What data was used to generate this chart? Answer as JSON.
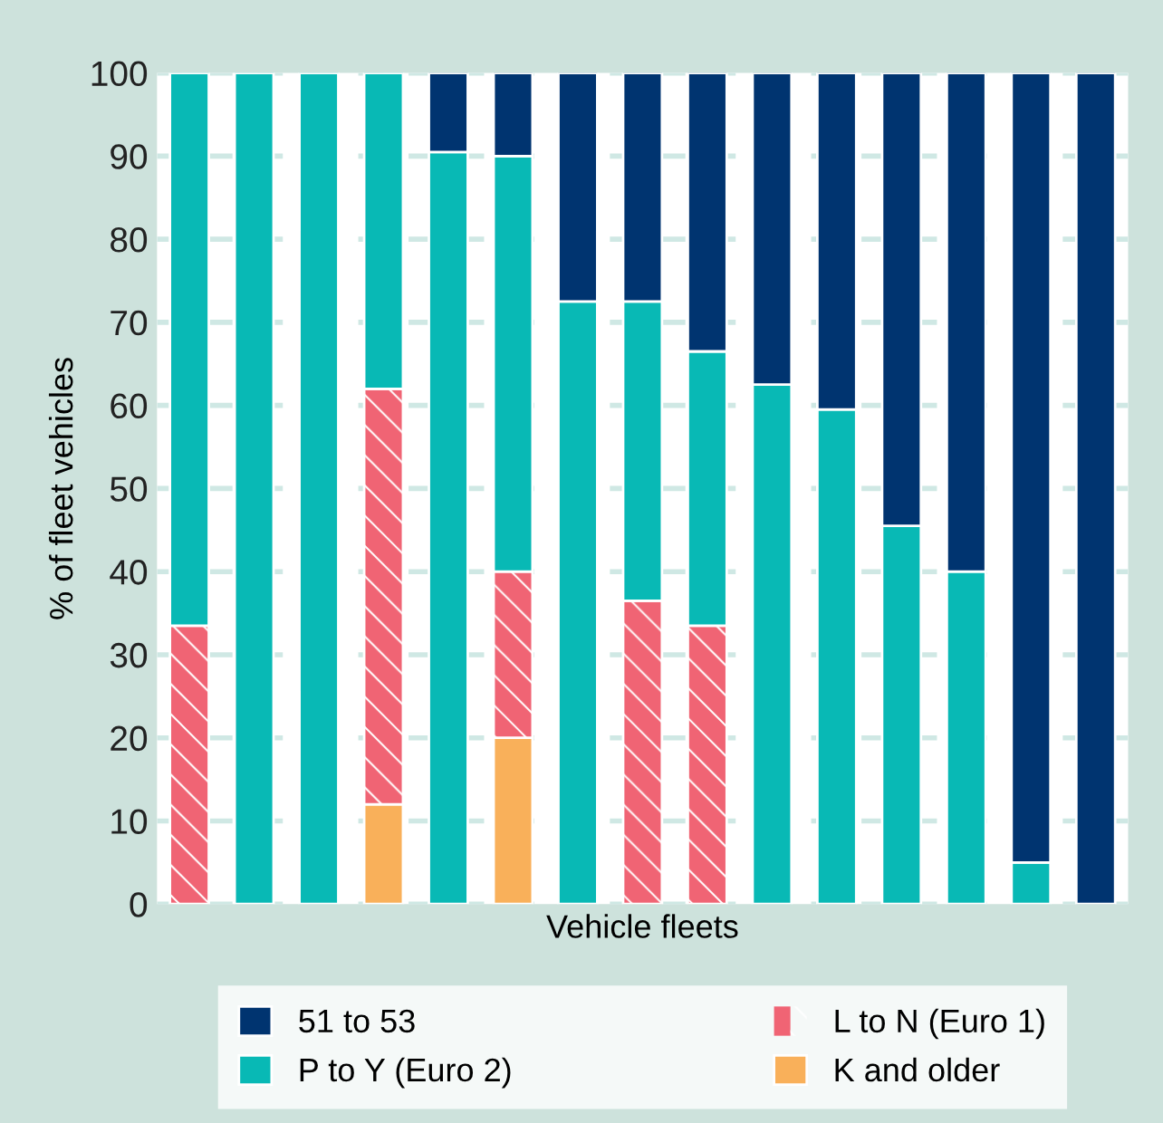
{
  "chart_data": {
    "type": "bar",
    "stacked": true,
    "xlabel": "Vehicle fleets",
    "ylabel": "% of fleet vehicles",
    "categories": [
      null,
      null,
      null,
      null,
      null,
      null,
      null,
      null,
      null,
      null,
      null,
      null,
      null,
      null,
      null
    ],
    "series": [
      {
        "name": "K and older",
        "color": "#f9b05a",
        "values": [
          0,
          0,
          0,
          12,
          0,
          20,
          0,
          0,
          0,
          0,
          0,
          0,
          0,
          0,
          0
        ]
      },
      {
        "name": "L to N (Euro 1)",
        "color": "#f06474",
        "values": [
          33.5,
          0,
          0,
          50,
          0,
          20,
          0,
          36.5,
          33.5,
          0,
          0,
          0,
          0,
          0,
          0
        ]
      },
      {
        "name": "P to Y (Euro 2)",
        "color": "#08b9b5",
        "values": [
          66.5,
          100,
          100,
          38,
          90.5,
          50,
          72.5,
          36,
          33,
          62.5,
          59.5,
          45.5,
          40,
          5,
          0
        ]
      },
      {
        "name": "51 to 53",
        "color": "#003470",
        "values": [
          0,
          0,
          0,
          0,
          9.5,
          10,
          27.5,
          27.5,
          33.5,
          37.5,
          40.5,
          54.5,
          60,
          95,
          100
        ]
      }
    ],
    "ylim": [
      0,
      100
    ],
    "yticks": [
      0,
      10,
      20,
      30,
      40,
      50,
      60,
      70,
      80,
      90,
      100
    ],
    "grid": "y",
    "legend": "bottom",
    "tick_labels": "y"
  }
}
